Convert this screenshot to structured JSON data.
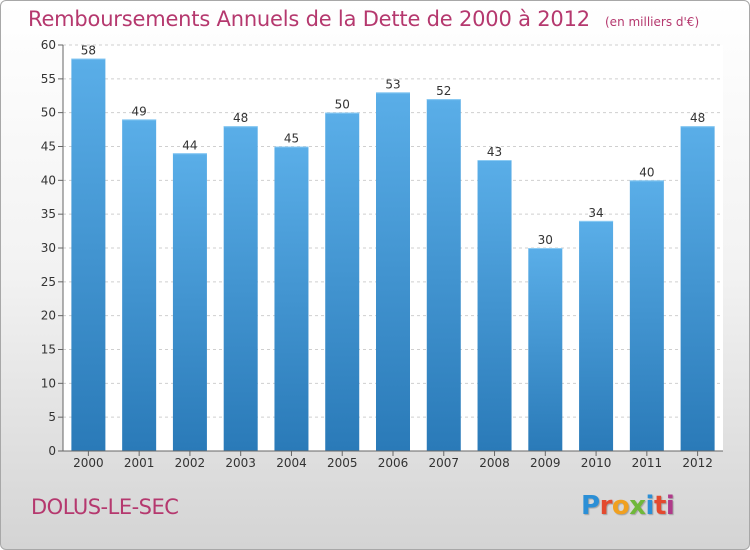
{
  "header": {
    "title": "Remboursements Annuels de la Dette de 2000 à 2012",
    "subtitle": "(en milliers d'€)"
  },
  "footer": {
    "commune": "DOLUS-LE-SEC",
    "logo_letters": [
      "P",
      "r",
      "o",
      "x",
      "i",
      "t",
      "i"
    ],
    "logo_colors": [
      "#2b8fd6",
      "#e34a2f",
      "#f0a020",
      "#6fb83a",
      "#2b8fd6",
      "#e34a2f",
      "#b03a8a"
    ]
  },
  "colors": {
    "bar_top": "#5aaee8",
    "bar_bottom": "#2a7ab8",
    "title": "#b5386e"
  },
  "chart_data": {
    "type": "bar",
    "categories": [
      "2000",
      "2001",
      "2002",
      "2003",
      "2004",
      "2005",
      "2006",
      "2007",
      "2008",
      "2009",
      "2010",
      "2011",
      "2012"
    ],
    "values": [
      58,
      49,
      44,
      48,
      45,
      50,
      53,
      52,
      43,
      30,
      34,
      40,
      48
    ],
    "ylim": [
      0,
      60
    ],
    "yticks": [
      0,
      5,
      10,
      15,
      20,
      25,
      30,
      35,
      40,
      45,
      50,
      55,
      60
    ],
    "grid": true,
    "grid_style": "dashed-horizontal"
  }
}
